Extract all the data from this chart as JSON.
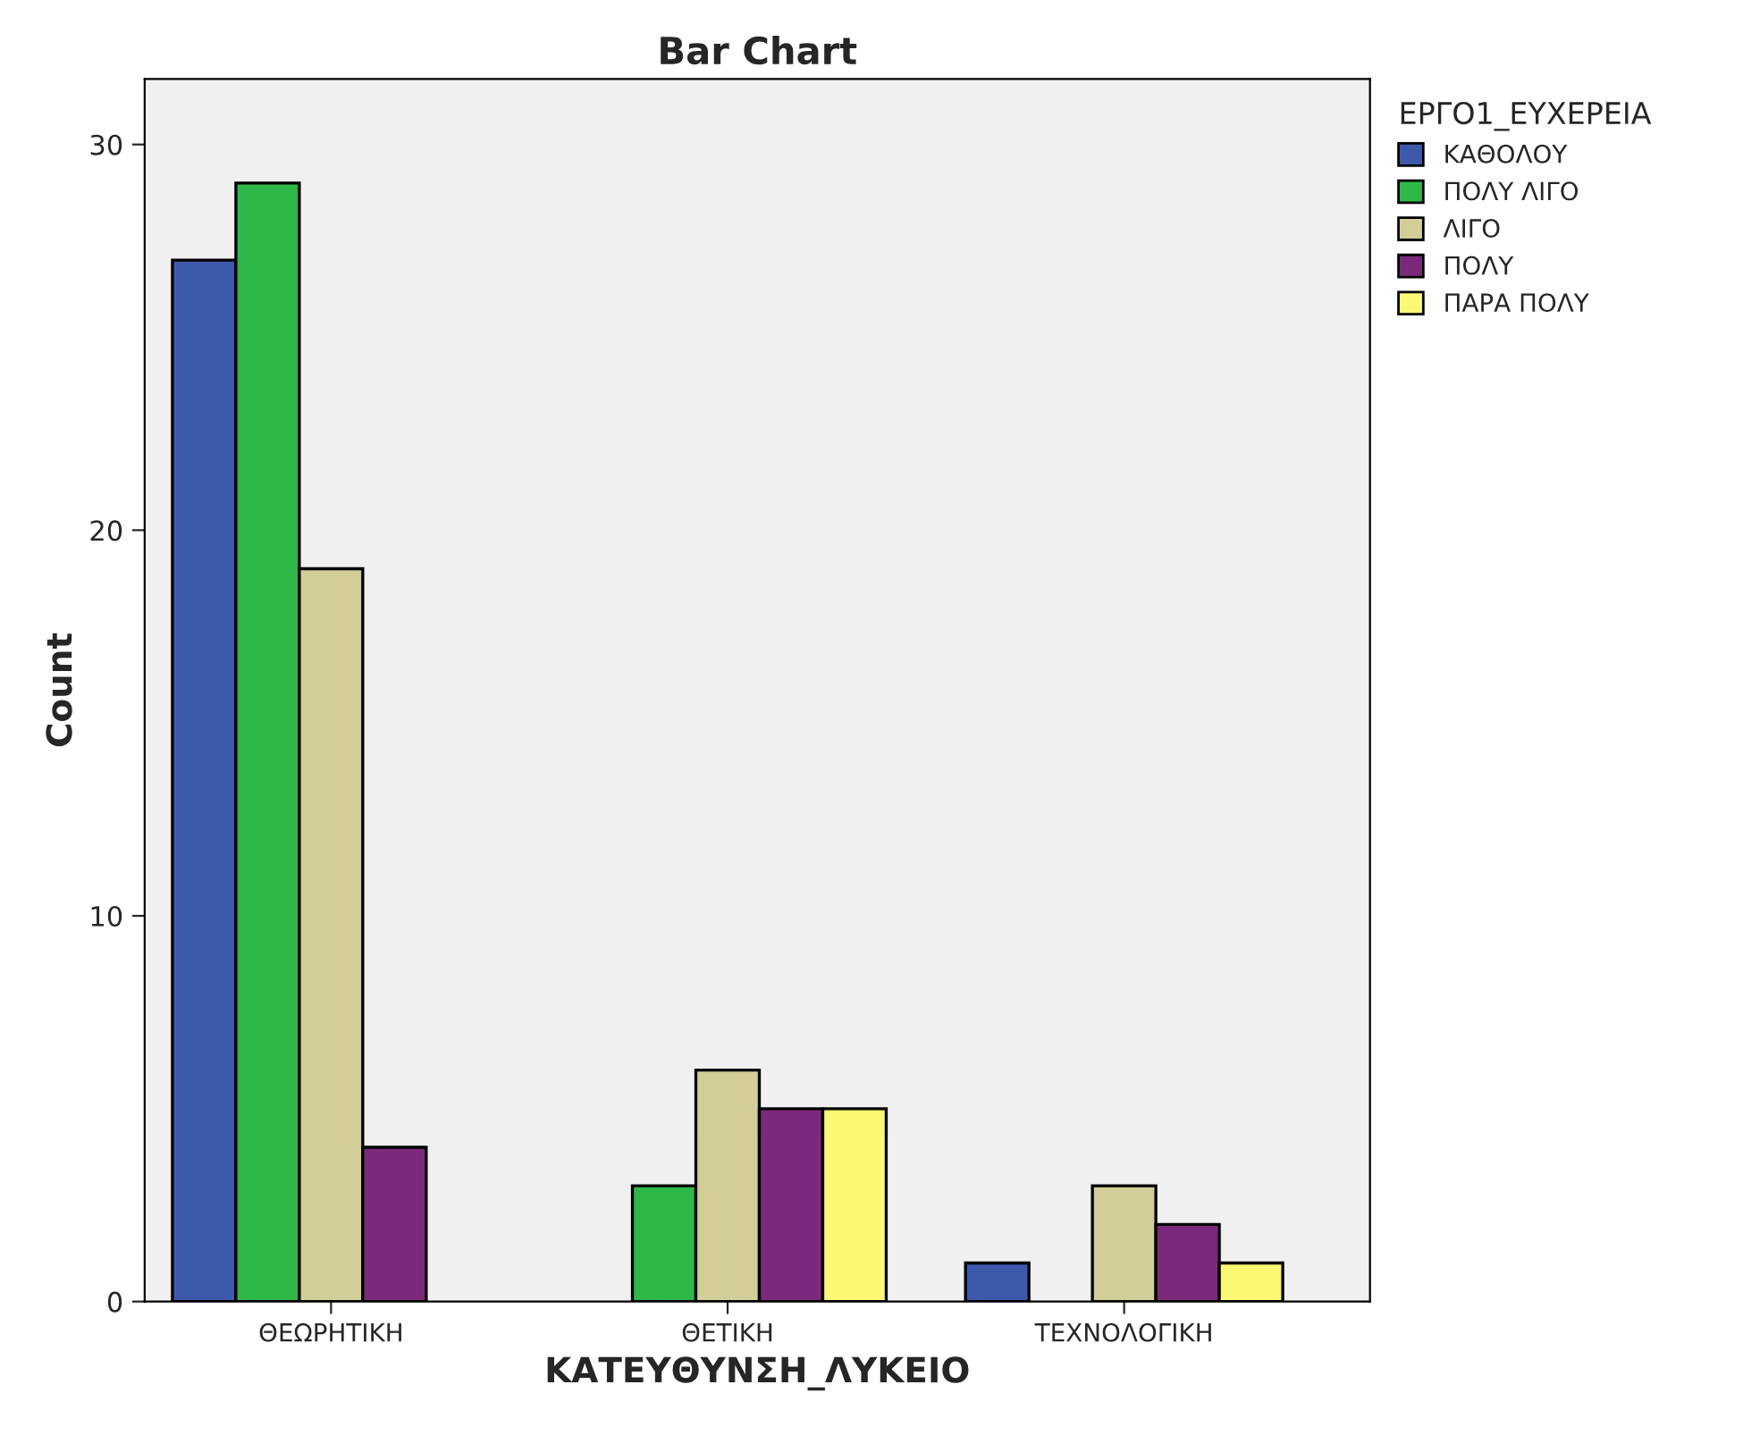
{
  "chart_data": {
    "type": "bar",
    "title": "Bar Chart",
    "xlabel": "ΚΑΤΕΥΘΥΝΣΗ_ΛΥΚΕΙΟ",
    "ylabel": "Count",
    "legend_title": "ΕΡΓΟ1_ΕΥΧΕΡΕΙΑ",
    "categories": [
      "ΘΕΩΡΗΤΙΚΗ",
      "ΘΕΤΙΚΗ",
      "ΤΕΧΝΟΛΟΓΙΚΗ"
    ],
    "series": [
      {
        "name": "ΚΑΘΟΛΟΥ",
        "color": "#3e58ac",
        "values": [
          27,
          null,
          1
        ]
      },
      {
        "name": "ΠΟΛΥ ΛΙΓΟ",
        "color": "#2eb848",
        "values": [
          29,
          3,
          null
        ]
      },
      {
        "name": "ΛΙΓΟ",
        "color": "#d3ce97",
        "values": [
          19,
          6,
          3
        ]
      },
      {
        "name": "ΠΟΛΥ",
        "color": "#7b2a7b",
        "values": [
          4,
          5,
          2
        ]
      },
      {
        "name": "ΠΑΡΑ ΠΟΛΥ",
        "color": "#fbf873",
        "values": [
          null,
          5,
          1
        ]
      }
    ],
    "ylim": [
      0,
      31.7
    ],
    "yticks": [
      0,
      10,
      20,
      30
    ],
    "grid": false,
    "legend": "top right"
  }
}
